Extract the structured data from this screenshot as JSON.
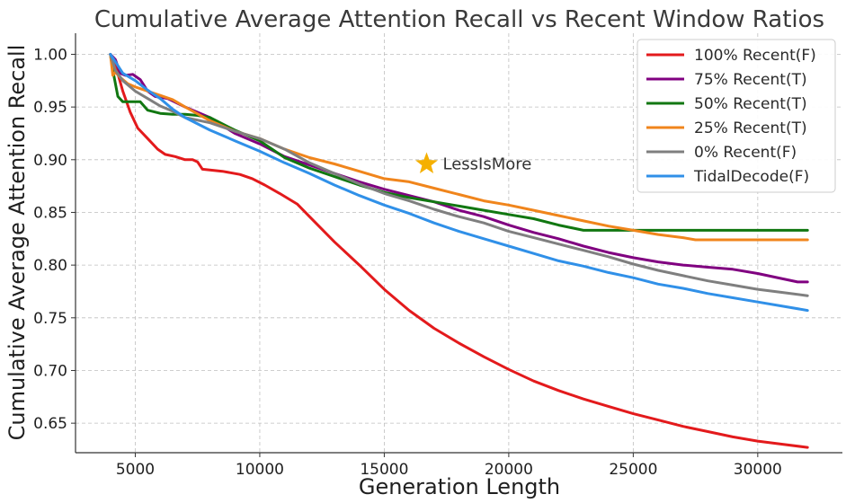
{
  "chart_data": {
    "type": "line",
    "title": "Cumulative Average Attention Recall vs Recent Window Ratios",
    "xlabel": "Generation Length",
    "ylabel": "Cumulative Average Attention Recall",
    "xlim": [
      2600,
      33400
    ],
    "ylim": [
      0.622,
      1.02
    ],
    "xticks": [
      5000,
      10000,
      15000,
      20000,
      25000,
      30000
    ],
    "xtick_labels": [
      "5000",
      "10000",
      "15000",
      "20000",
      "25000",
      "30000"
    ],
    "yticks": [
      0.65,
      0.7,
      0.75,
      0.8,
      0.85,
      0.9,
      0.95,
      1.0
    ],
    "ytick_labels": [
      "0.65",
      "0.70",
      "0.75",
      "0.80",
      "0.85",
      "0.90",
      "0.95",
      "1.00"
    ],
    "grid": true,
    "legend_position": "top-right",
    "annotations": [
      {
        "label": "LessIsMore",
        "x": 16700,
        "y": 0.896,
        "marker": "star",
        "color": "#F5B000"
      }
    ],
    "series": [
      {
        "name": "100% Recent(F)",
        "color": "#E31A1C",
        "x": [
          4000,
          4200,
          4500,
          4800,
          5100,
          5500,
          5900,
          6200,
          6600,
          7000,
          7300,
          7500,
          7700,
          8500,
          9200,
          9700,
          10200,
          10800,
          11500,
          12000,
          13000,
          14000,
          15000,
          16000,
          17000,
          18000,
          19000,
          20000,
          21000,
          22000,
          23000,
          24000,
          25000,
          26000,
          27000,
          28000,
          29000,
          30000,
          31000,
          32000
        ],
        "y": [
          1.0,
          0.99,
          0.965,
          0.945,
          0.93,
          0.92,
          0.91,
          0.905,
          0.903,
          0.9,
          0.9,
          0.898,
          0.891,
          0.889,
          0.886,
          0.882,
          0.876,
          0.868,
          0.858,
          0.846,
          0.822,
          0.8,
          0.777,
          0.757,
          0.74,
          0.726,
          0.713,
          0.701,
          0.69,
          0.681,
          0.673,
          0.666,
          0.659,
          0.653,
          0.647,
          0.642,
          0.637,
          0.633,
          0.63,
          0.627
        ]
      },
      {
        "name": "75% Recent(T)",
        "color": "#800080",
        "x": [
          4000,
          4200,
          4400,
          4600,
          4900,
          5200,
          5500,
          5800,
          6300,
          7000,
          8000,
          9000,
          10000,
          11000,
          12000,
          13000,
          14000,
          15000,
          16000,
          17000,
          18000,
          19000,
          20000,
          21000,
          22000,
          23000,
          24000,
          25000,
          26000,
          27000,
          28000,
          29000,
          30000,
          31000,
          31600,
          32000
        ],
        "y": [
          1.0,
          0.995,
          0.982,
          0.98,
          0.981,
          0.976,
          0.965,
          0.96,
          0.958,
          0.95,
          0.94,
          0.925,
          0.915,
          0.903,
          0.895,
          0.887,
          0.879,
          0.872,
          0.866,
          0.86,
          0.852,
          0.846,
          0.838,
          0.831,
          0.825,
          0.818,
          0.812,
          0.807,
          0.803,
          0.8,
          0.798,
          0.796,
          0.792,
          0.787,
          0.784,
          0.784
        ]
      },
      {
        "name": "50% Recent(T)",
        "color": "#117711",
        "x": [
          4000,
          4100,
          4300,
          4500,
          4700,
          4900,
          5200,
          5500,
          6000,
          6500,
          7000,
          7500,
          8000,
          9000,
          10000,
          11000,
          12000,
          13000,
          14000,
          15000,
          16000,
          17000,
          18000,
          19000,
          20000,
          21000,
          22000,
          23000,
          24000,
          25000,
          26000,
          27000,
          28000,
          29000,
          30000,
          31000,
          32000
        ],
        "y": [
          1.0,
          0.985,
          0.96,
          0.955,
          0.955,
          0.955,
          0.955,
          0.947,
          0.944,
          0.943,
          0.943,
          0.942,
          0.94,
          0.928,
          0.918,
          0.902,
          0.892,
          0.884,
          0.876,
          0.869,
          0.864,
          0.86,
          0.856,
          0.852,
          0.848,
          0.844,
          0.838,
          0.833,
          0.833,
          0.833,
          0.833,
          0.833,
          0.833,
          0.833,
          0.833,
          0.833,
          0.833
        ]
      },
      {
        "name": "25% Recent(T)",
        "color": "#F0851C",
        "x": [
          4000,
          4100,
          4200,
          4400,
          4700,
          5000,
          5500,
          6000,
          6500,
          7000,
          8000,
          9000,
          10000,
          11000,
          12000,
          13000,
          14000,
          15000,
          16000,
          17000,
          18000,
          19000,
          20000,
          21000,
          22000,
          23000,
          24000,
          25000,
          26000,
          27000,
          27500,
          28000,
          29000,
          30000,
          31000,
          32000
        ],
        "y": [
          1.0,
          0.98,
          0.983,
          0.978,
          0.972,
          0.969,
          0.965,
          0.961,
          0.957,
          0.95,
          0.937,
          0.927,
          0.92,
          0.91,
          0.902,
          0.896,
          0.889,
          0.882,
          0.879,
          0.873,
          0.867,
          0.861,
          0.857,
          0.852,
          0.847,
          0.842,
          0.837,
          0.833,
          0.829,
          0.826,
          0.824,
          0.824,
          0.824,
          0.824,
          0.824,
          0.824
        ]
      },
      {
        "name": "0% Recent(F)",
        "color": "#7F7F7F",
        "x": [
          4000,
          4200,
          4500,
          5000,
          5500,
          6000,
          6500,
          7000,
          8000,
          9000,
          10000,
          11000,
          12000,
          13000,
          14000,
          15000,
          16000,
          17000,
          18000,
          19000,
          20000,
          21000,
          22000,
          23000,
          24000,
          25000,
          26000,
          27000,
          28000,
          29000,
          30000,
          31000,
          32000
        ],
        "y": [
          1.0,
          0.985,
          0.975,
          0.965,
          0.958,
          0.951,
          0.946,
          0.94,
          0.935,
          0.927,
          0.92,
          0.91,
          0.897,
          0.887,
          0.877,
          0.868,
          0.861,
          0.853,
          0.846,
          0.84,
          0.832,
          0.826,
          0.82,
          0.814,
          0.808,
          0.801,
          0.795,
          0.79,
          0.785,
          0.781,
          0.777,
          0.774,
          0.771
        ]
      },
      {
        "name": "TidalDecode(F)",
        "color": "#3090E8",
        "x": [
          4000,
          4200,
          4500,
          5000,
          5500,
          6000,
          6500,
          7000,
          8000,
          9000,
          10000,
          11000,
          12000,
          13000,
          14000,
          15000,
          16000,
          17000,
          18000,
          19000,
          20000,
          21000,
          22000,
          23000,
          24000,
          25000,
          26000,
          27000,
          28000,
          29000,
          30000,
          31000,
          32000
        ],
        "y": [
          1.0,
          0.993,
          0.982,
          0.975,
          0.966,
          0.958,
          0.948,
          0.94,
          0.928,
          0.918,
          0.908,
          0.897,
          0.887,
          0.876,
          0.866,
          0.857,
          0.849,
          0.84,
          0.832,
          0.825,
          0.818,
          0.811,
          0.804,
          0.799,
          0.793,
          0.788,
          0.782,
          0.778,
          0.773,
          0.769,
          0.765,
          0.761,
          0.757
        ]
      }
    ]
  }
}
